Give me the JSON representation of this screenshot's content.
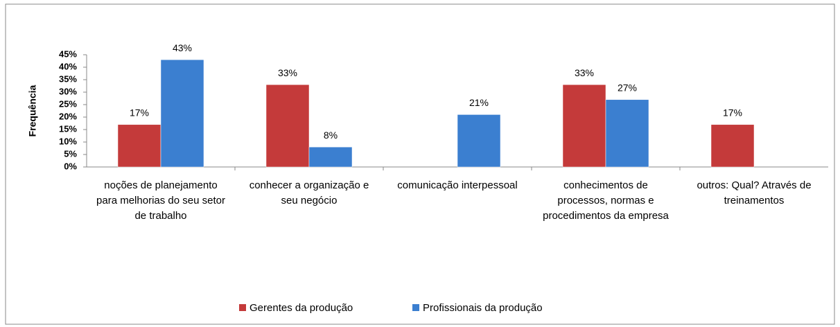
{
  "chart_data": {
    "type": "bar",
    "y_label": "Frequência",
    "categories": [
      "noções de planejamento para melhorias do seu setor de trabalho",
      "conhecer a organização e seu negócio",
      "comunicação interpessoal",
      "conhecimentos de processos, normas e procedimentos da empresa",
      "outros: Qual?   Através de treinamentos"
    ],
    "series": [
      {
        "name": "Gerentes da produção",
        "color": "#c43a3a",
        "values": [
          17,
          33,
          null,
          33,
          17
        ],
        "value_labels": [
          "17%",
          "33%",
          null,
          "33%",
          "17%"
        ]
      },
      {
        "name": "Profissionais da produção",
        "color": "#3b7fd0",
        "values": [
          43,
          8,
          21,
          27,
          null
        ],
        "value_labels": [
          "43%",
          "8%",
          "21%",
          "27%",
          null
        ]
      }
    ],
    "ylim": [
      0,
      45
    ],
    "yticks": [
      {
        "value": 0,
        "label": "0%"
      },
      {
        "value": 5,
        "label": "5%"
      },
      {
        "value": 10,
        "label": "10%"
      },
      {
        "value": 15,
        "label": "15%"
      },
      {
        "value": 20,
        "label": "20%"
      },
      {
        "value": 25,
        "label": "25%"
      },
      {
        "value": 30,
        "label": "30%"
      },
      {
        "value": 35,
        "label": "35%"
      },
      {
        "value": 40,
        "label": "40%"
      },
      {
        "value": 45,
        "label": "45%"
      }
    ],
    "legend": "bottom"
  }
}
